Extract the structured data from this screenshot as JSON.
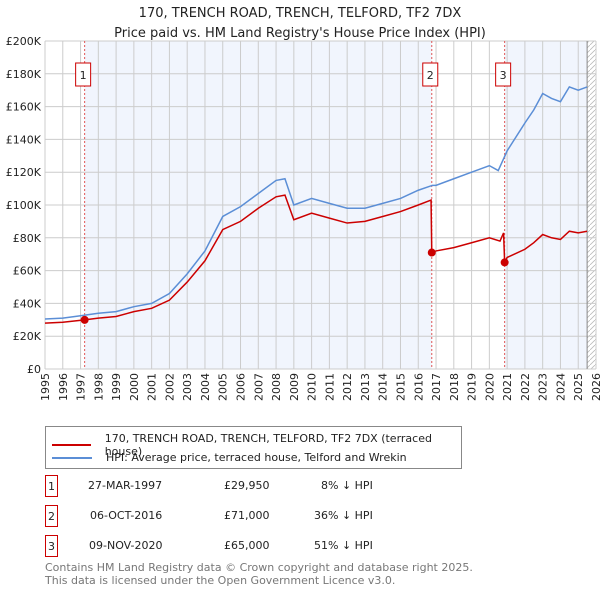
{
  "chart_data": {
    "type": "line",
    "title": "170, TRENCH ROAD, TRENCH, TELFORD, TF2 7DX",
    "subtitle": "Price paid vs. HM Land Registry's House Price Index (HPI)",
    "xlim": [
      1995,
      2026
    ],
    "ylim": [
      0,
      200000
    ],
    "x_ticks": [
      "1995",
      "1996",
      "1997",
      "1998",
      "1999",
      "2000",
      "2001",
      "2002",
      "2003",
      "2004",
      "2005",
      "2006",
      "2007",
      "2008",
      "2009",
      "2010",
      "2011",
      "2012",
      "2013",
      "2014",
      "2015",
      "2016",
      "2017",
      "2018",
      "2019",
      "2020",
      "2021",
      "2022",
      "2023",
      "2024",
      "2025",
      "2026"
    ],
    "y_ticks": [
      "£0",
      "£20K",
      "£40K",
      "£60K",
      "£80K",
      "£100K",
      "£120K",
      "£140K",
      "£160K",
      "£180K",
      "£200K"
    ],
    "grid": true,
    "series": [
      {
        "name": "170, TRENCH ROAD, TRENCH, TELFORD, TF2 7DX (terraced house)",
        "color": "#cc0000",
        "x": [
          1995,
          1996,
          1997.23,
          1998,
          1999,
          2000,
          2001,
          2002,
          2003,
          2004,
          2005,
          2006,
          2007,
          2008,
          2008.5,
          2009,
          2010,
          2011,
          2012,
          2013,
          2014,
          2015,
          2016,
          2016.72,
          2016.76,
          2017,
          2018,
          2019,
          2020,
          2020.6,
          2020.8,
          2020.86,
          2021,
          2022,
          2022.5,
          2023,
          2023.5,
          2024,
          2024.5,
          2025,
          2025.5
        ],
        "y": [
          28000,
          28500,
          29950,
          31000,
          32000,
          35000,
          37000,
          42000,
          53000,
          66000,
          85000,
          90000,
          98000,
          105000,
          106000,
          91000,
          95000,
          92000,
          89000,
          90000,
          93000,
          96000,
          100000,
          103000,
          71000,
          72000,
          74000,
          77000,
          80000,
          78000,
          83000,
          65000,
          68000,
          73000,
          77000,
          82000,
          80000,
          79000,
          84000,
          83000,
          84000
        ]
      },
      {
        "name": "HPI: Average price, terraced house, Telford and Wrekin",
        "color": "#5b8ed6",
        "x": [
          1995,
          1996,
          1997,
          1998,
          1999,
          2000,
          2001,
          2002,
          2003,
          2004,
          2005,
          2006,
          2007,
          2008,
          2008.5,
          2009,
          2010,
          2011,
          2012,
          2013,
          2014,
          2015,
          2016,
          2016.8,
          2017,
          2018,
          2019,
          2020,
          2020.5,
          2021,
          2022,
          2022.5,
          2023,
          2023.5,
          2024,
          2024.5,
          2025,
          2025.5
        ],
        "y": [
          30500,
          31000,
          32500,
          34000,
          35000,
          38000,
          40000,
          46000,
          58000,
          72000,
          93000,
          99000,
          107000,
          115000,
          116000,
          100000,
          104000,
          101000,
          98000,
          98000,
          101000,
          104000,
          109000,
          112000,
          112000,
          116000,
          120000,
          124000,
          121000,
          133000,
          150000,
          158000,
          168000,
          165000,
          163000,
          172000,
          170000,
          172000
        ]
      }
    ],
    "sales": [
      {
        "label": "1",
        "x": 1997.23,
        "y": 29950
      },
      {
        "label": "2",
        "x": 2016.76,
        "y": 71000
      },
      {
        "label": "3",
        "x": 2020.86,
        "y": 65000
      }
    ]
  },
  "legend": {
    "price": "170, TRENCH ROAD, TRENCH, TELFORD, TF2 7DX (terraced house)",
    "hpi": "HPI: Average price, terraced house, Telford and Wrekin"
  },
  "table": [
    {
      "num": "1",
      "date": "27-MAR-1997",
      "price": "£29,950",
      "diff": "8% ↓ HPI"
    },
    {
      "num": "2",
      "date": "06-OCT-2016",
      "price": "£71,000",
      "diff": "36% ↓ HPI"
    },
    {
      "num": "3",
      "date": "09-NOV-2020",
      "price": "£65,000",
      "diff": "51% ↓ HPI"
    }
  ],
  "footer": [
    "Contains HM Land Registry data © Crown copyright and database right 2025.",
    "This data is licensed under the Open Government Licence v3.0."
  ]
}
